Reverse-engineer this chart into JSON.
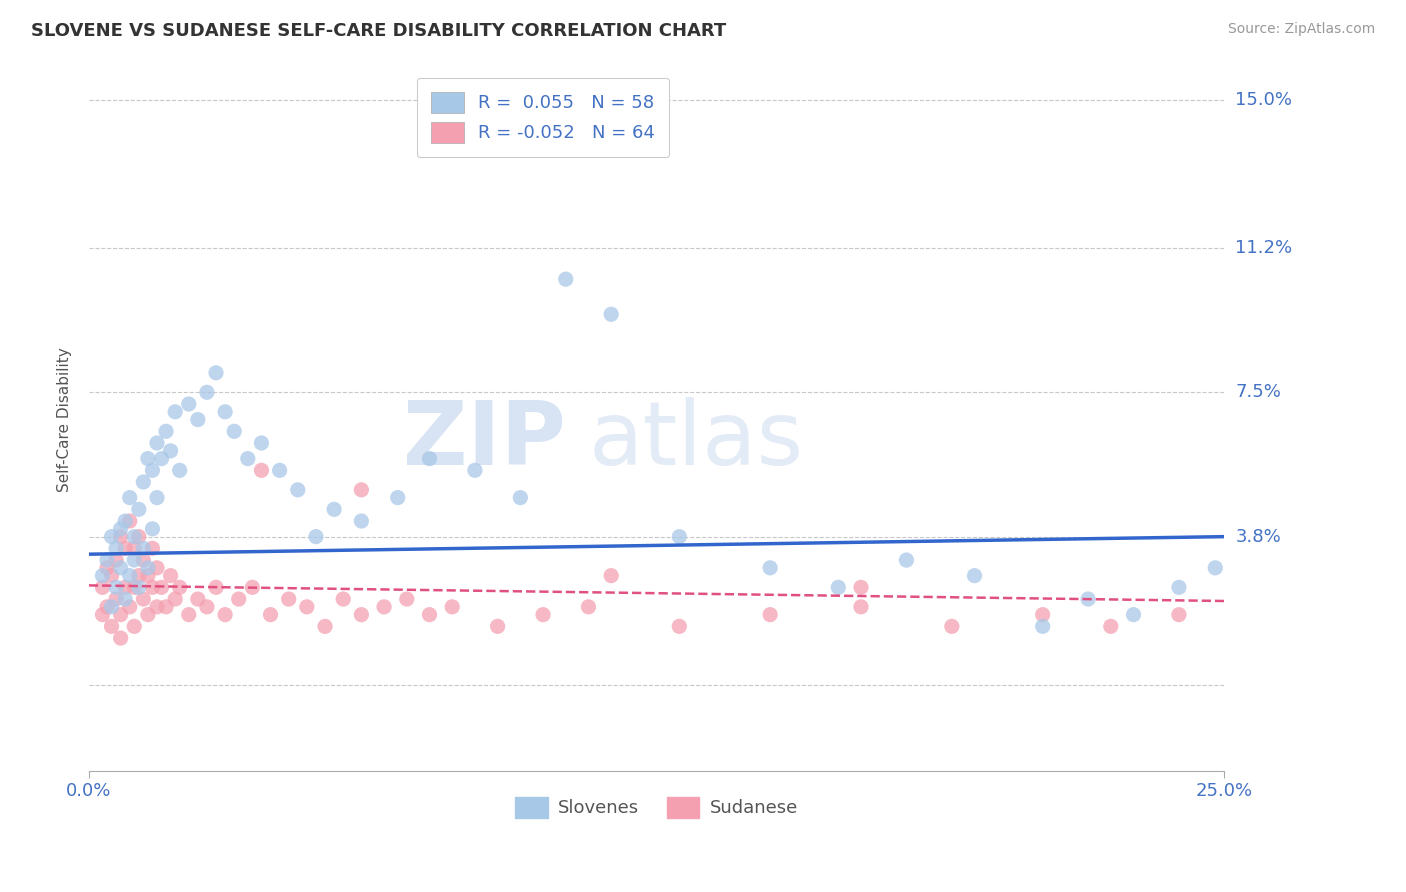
{
  "title": "SLOVENE VS SUDANESE SELF-CARE DISABILITY CORRELATION CHART",
  "source": "Source: ZipAtlas.com",
  "ylabel": "Self-Care Disability",
  "y_ticks": [
    0.0,
    0.038,
    0.075,
    0.112,
    0.15
  ],
  "y_tick_labels": [
    "",
    "3.8%",
    "7.5%",
    "11.2%",
    "15.0%"
  ],
  "xlim": [
    0.0,
    0.25
  ],
  "ylim": [
    -0.022,
    0.158
  ],
  "slovene_color": "#a8c8e8",
  "sudanese_color": "#f4a0b0",
  "slovene_line_color": "#3366cc",
  "sudanese_line_color": "#e05080",
  "R_slovene": 0.055,
  "N_slovene": 58,
  "R_sudanese": -0.052,
  "N_sudanese": 64,
  "grid_color": "#c8c8c8",
  "background_color": "#ffffff",
  "title_color": "#333333",
  "axis_label_color": "#4472c4",
  "watermark_zip": "ZIP",
  "watermark_atlas": "atlas",
  "slovene_x": [
    0.003,
    0.004,
    0.005,
    0.005,
    0.006,
    0.006,
    0.007,
    0.007,
    0.008,
    0.008,
    0.009,
    0.009,
    0.01,
    0.01,
    0.011,
    0.011,
    0.012,
    0.012,
    0.013,
    0.013,
    0.014,
    0.014,
    0.015,
    0.015,
    0.016,
    0.017,
    0.018,
    0.019,
    0.02,
    0.022,
    0.024,
    0.026,
    0.028,
    0.03,
    0.032,
    0.035,
    0.038,
    0.042,
    0.046,
    0.05,
    0.054,
    0.06,
    0.068,
    0.075,
    0.085,
    0.095,
    0.105,
    0.115,
    0.13,
    0.15,
    0.165,
    0.18,
    0.195,
    0.21,
    0.22,
    0.23,
    0.24,
    0.248
  ],
  "slovene_y": [
    0.028,
    0.032,
    0.02,
    0.038,
    0.025,
    0.035,
    0.03,
    0.04,
    0.022,
    0.042,
    0.028,
    0.048,
    0.032,
    0.038,
    0.025,
    0.045,
    0.035,
    0.052,
    0.03,
    0.058,
    0.04,
    0.055,
    0.048,
    0.062,
    0.058,
    0.065,
    0.06,
    0.07,
    0.055,
    0.072,
    0.068,
    0.075,
    0.08,
    0.07,
    0.065,
    0.058,
    0.062,
    0.055,
    0.05,
    0.038,
    0.045,
    0.042,
    0.048,
    0.058,
    0.055,
    0.048,
    0.104,
    0.095,
    0.038,
    0.03,
    0.025,
    0.032,
    0.028,
    0.015,
    0.022,
    0.018,
    0.025,
    0.03
  ],
  "sudanese_x": [
    0.003,
    0.003,
    0.004,
    0.004,
    0.005,
    0.005,
    0.006,
    0.006,
    0.007,
    0.007,
    0.007,
    0.008,
    0.008,
    0.009,
    0.009,
    0.01,
    0.01,
    0.01,
    0.011,
    0.011,
    0.012,
    0.012,
    0.013,
    0.013,
    0.014,
    0.014,
    0.015,
    0.015,
    0.016,
    0.017,
    0.018,
    0.019,
    0.02,
    0.022,
    0.024,
    0.026,
    0.028,
    0.03,
    0.033,
    0.036,
    0.04,
    0.044,
    0.048,
    0.052,
    0.056,
    0.06,
    0.065,
    0.07,
    0.075,
    0.08,
    0.09,
    0.1,
    0.11,
    0.13,
    0.15,
    0.17,
    0.19,
    0.21,
    0.225,
    0.24,
    0.038,
    0.06,
    0.115,
    0.17
  ],
  "sudanese_y": [
    0.018,
    0.025,
    0.02,
    0.03,
    0.015,
    0.028,
    0.022,
    0.032,
    0.018,
    0.038,
    0.012,
    0.025,
    0.035,
    0.02,
    0.042,
    0.025,
    0.035,
    0.015,
    0.028,
    0.038,
    0.022,
    0.032,
    0.018,
    0.028,
    0.025,
    0.035,
    0.02,
    0.03,
    0.025,
    0.02,
    0.028,
    0.022,
    0.025,
    0.018,
    0.022,
    0.02,
    0.025,
    0.018,
    0.022,
    0.025,
    0.018,
    0.022,
    0.02,
    0.015,
    0.022,
    0.018,
    0.02,
    0.022,
    0.018,
    0.02,
    0.015,
    0.018,
    0.02,
    0.015,
    0.018,
    0.02,
    0.015,
    0.018,
    0.015,
    0.018,
    0.055,
    0.05,
    0.028,
    0.025
  ],
  "slovene_line_x0": 0.0,
  "slovene_line_y0": 0.0335,
  "slovene_line_x1": 0.25,
  "slovene_line_y1": 0.038,
  "sudanese_line_x0": 0.0,
  "sudanese_line_y0": 0.0255,
  "sudanese_line_x1": 0.25,
  "sudanese_line_y1": 0.0215
}
